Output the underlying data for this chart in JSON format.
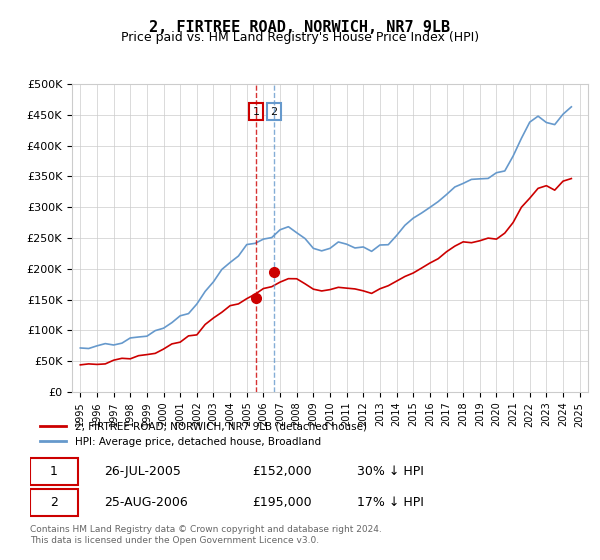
{
  "title": "2, FIRTREE ROAD, NORWICH, NR7 9LB",
  "subtitle": "Price paid vs. HM Land Registry's House Price Index (HPI)",
  "legend_line1": "2, FIRTREE ROAD, NORWICH, NR7 9LB (detached house)",
  "legend_line2": "HPI: Average price, detached house, Broadland",
  "footer": "Contains HM Land Registry data © Crown copyright and database right 2024.\nThis data is licensed under the Open Government Licence v3.0.",
  "sale1_label": "1",
  "sale1_date": "26-JUL-2005",
  "sale1_price": "£152,000",
  "sale1_hpi": "30% ↓ HPI",
  "sale1_year": 2005.56,
  "sale1_value": 152000,
  "sale2_label": "2",
  "sale2_date": "25-AUG-2006",
  "sale2_price": "£195,000",
  "sale2_hpi": "17% ↓ HPI",
  "sale2_year": 2006.64,
  "sale2_value": 195000,
  "red_color": "#cc0000",
  "blue_color": "#6699cc",
  "grid_color": "#cccccc",
  "vline_color_1": "#cc0000",
  "vline_color_2": "#6699cc",
  "background_color": "#ffffff",
  "ylim": [
    0,
    500000
  ],
  "xlim_start": 1994.5,
  "xlim_end": 2025.5
}
